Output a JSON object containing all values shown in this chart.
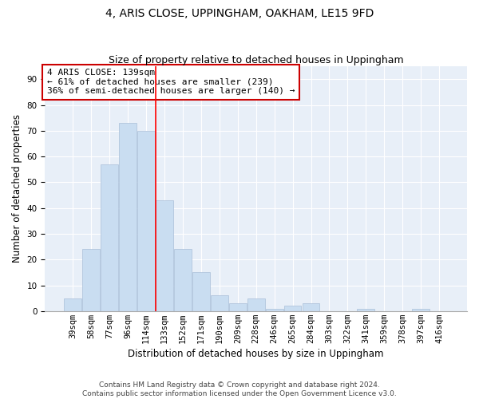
{
  "title": "4, ARIS CLOSE, UPPINGHAM, OAKHAM, LE15 9FD",
  "subtitle": "Size of property relative to detached houses in Uppingham",
  "xlabel": "Distribution of detached houses by size in Uppingham",
  "ylabel": "Number of detached properties",
  "categories": [
    "39sqm",
    "58sqm",
    "77sqm",
    "96sqm",
    "114sqm",
    "133sqm",
    "152sqm",
    "171sqm",
    "190sqm",
    "209sqm",
    "228sqm",
    "246sqm",
    "265sqm",
    "284sqm",
    "303sqm",
    "322sqm",
    "341sqm",
    "359sqm",
    "378sqm",
    "397sqm",
    "416sqm"
  ],
  "values": [
    5,
    24,
    57,
    73,
    70,
    43,
    24,
    15,
    6,
    3,
    5,
    1,
    2,
    3,
    0,
    0,
    1,
    0,
    0,
    1,
    0
  ],
  "bar_color": "#c9ddf1",
  "bar_edge_color": "#aabfd8",
  "red_line_x": 4.5,
  "annotation_text": "4 ARIS CLOSE: 139sqm\n← 61% of detached houses are smaller (239)\n36% of semi-detached houses are larger (140) →",
  "annotation_box_color": "#ffffff",
  "annotation_box_edge": "#cc0000",
  "ylim": [
    0,
    95
  ],
  "yticks": [
    0,
    10,
    20,
    30,
    40,
    50,
    60,
    70,
    80,
    90
  ],
  "bg_color": "#e8eff8",
  "grid_color": "#ffffff",
  "footer_line1": "Contains HM Land Registry data © Crown copyright and database right 2024.",
  "footer_line2": "Contains public sector information licensed under the Open Government Licence v3.0.",
  "title_fontsize": 10,
  "subtitle_fontsize": 9,
  "xlabel_fontsize": 8.5,
  "ylabel_fontsize": 8.5,
  "annot_fontsize": 8,
  "footer_fontsize": 6.5,
  "tick_fontsize": 7.5
}
